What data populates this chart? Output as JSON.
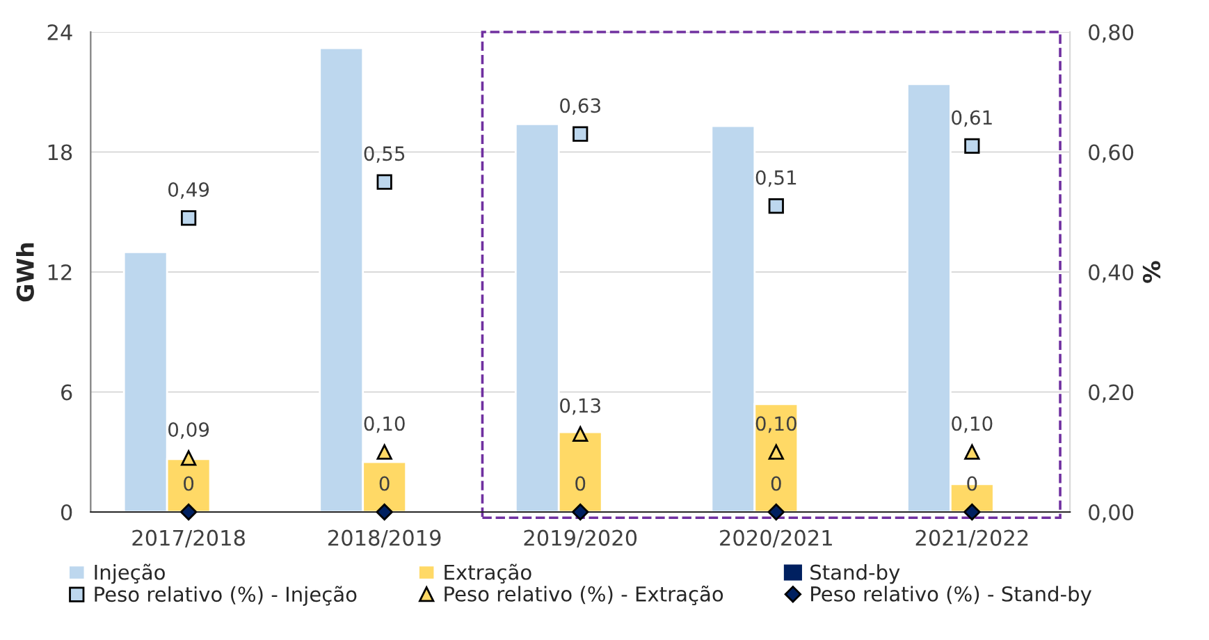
{
  "chart_data": {
    "type": "bar",
    "ylabel": "GWh",
    "y2label": "%",
    "categories": [
      "2017/2018",
      "2018/2019",
      "2019/2020",
      "2020/2021",
      "2021/2022"
    ],
    "series": [
      {
        "name": "Injeção",
        "color": "#bdd7ee",
        "values": [
          13.0,
          23.2,
          19.4,
          19.3,
          21.4
        ]
      },
      {
        "name": "Extração",
        "color": "#ffd966",
        "values": [
          2.65,
          2.5,
          4.0,
          5.4,
          1.4
        ]
      },
      {
        "name": "Stand-by",
        "color": "#002060",
        "values": [
          null,
          null,
          null,
          null,
          null
        ]
      },
      {
        "name": "Peso relativo (%) - Injeção",
        "type": "scatter",
        "axis": "y2",
        "marker": "square",
        "color": "#bdd7ee",
        "values": [
          0.49,
          0.55,
          0.63,
          0.51,
          0.61
        ],
        "value_labels": [
          "0,49",
          "0,55",
          "0,63",
          "0,51",
          "0,61"
        ]
      },
      {
        "name": "Peso relativo (%) - Extração",
        "type": "scatter",
        "axis": "y2",
        "marker": "triangle",
        "color": "#ffd966",
        "values": [
          0.09,
          0.1,
          0.13,
          0.1,
          0.1
        ],
        "value_labels": [
          "0,09",
          "0,10",
          "0,13",
          "0,10",
          "0,10"
        ]
      },
      {
        "name": "Peso relativo (%) - Stand-by",
        "type": "scatter",
        "axis": "y2",
        "marker": "diamond",
        "color": "#002060",
        "values": [
          0,
          0,
          0,
          0,
          0
        ],
        "value_labels": [
          "0",
          "0",
          "0",
          "0",
          "0"
        ]
      }
    ],
    "ylim": [
      0,
      24
    ],
    "yticks": [
      0,
      6,
      12,
      18,
      24
    ],
    "y2lim": [
      0,
      0.8
    ],
    "y2ticks": [
      {
        "value": 0,
        "label": "0,00"
      },
      {
        "value": 0.2,
        "label": "0,20"
      },
      {
        "value": 0.4,
        "label": "0,40"
      },
      {
        "value": 0.6,
        "label": "0,60"
      },
      {
        "value": 0.8,
        "label": "0,80"
      }
    ],
    "grid": "y",
    "legend": "bottom"
  }
}
